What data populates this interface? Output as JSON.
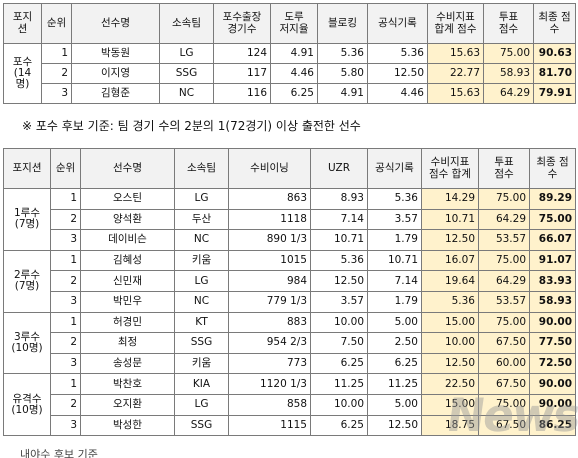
{
  "table1": {
    "headers": [
      "포지\n션",
      "순위",
      "선수명",
      "소속팀",
      "포수출장\n경기수",
      "도루\n저지율",
      "블로킹",
      "공식기록",
      "수비지표\n합계 점수",
      "투표\n점수",
      "최종 점수"
    ],
    "group_label": "포수\n(14명)",
    "rows": [
      [
        "1",
        "박동원",
        "LG",
        "124",
        "4.91",
        "5.36",
        "5.36",
        "15.63",
        "75.00",
        "90.63"
      ],
      [
        "2",
        "이지영",
        "SSG",
        "117",
        "4.46",
        "5.80",
        "12.50",
        "22.77",
        "58.93",
        "81.70"
      ],
      [
        "3",
        "김형준",
        "NC",
        "116",
        "6.25",
        "4.91",
        "4.46",
        "15.63",
        "64.29",
        "79.91"
      ]
    ]
  },
  "note": "※ 포수 후보 기준: 팀 경기 수의 2분의 1(72경기) 이상 출전한 선수",
  "table2": {
    "headers": [
      "포지션",
      "순위",
      "선수명",
      "소속팀",
      "수비이닝",
      "UZR",
      "공식기록",
      "수비지표\n점수 합계",
      "투표\n점수",
      "최종 점수"
    ],
    "groups": [
      {
        "label": "1루수\n(7명)",
        "rows": [
          [
            "1",
            "오스틴",
            "LG",
            "863",
            "8.93",
            "5.36",
            "14.29",
            "75.00",
            "89.29"
          ],
          [
            "2",
            "양석환",
            "두산",
            "1118",
            "7.14",
            "3.57",
            "10.71",
            "64.29",
            "75.00"
          ],
          [
            "3",
            "데이비슨",
            "NC",
            "890 1/3",
            "10.71",
            "1.79",
            "12.50",
            "53.57",
            "66.07"
          ]
        ]
      },
      {
        "label": "2루수\n(7명)",
        "rows": [
          [
            "1",
            "김혜성",
            "키움",
            "1015",
            "5.36",
            "10.71",
            "16.07",
            "75.00",
            "91.07"
          ],
          [
            "2",
            "신민재",
            "LG",
            "984",
            "12.50",
            "7.14",
            "19.64",
            "64.29",
            "83.93"
          ],
          [
            "3",
            "박민우",
            "NC",
            "779 1/3",
            "3.57",
            "1.79",
            "5.36",
            "53.57",
            "58.93"
          ]
        ]
      },
      {
        "label": "3루수\n(10명)",
        "rows": [
          [
            "1",
            "허경민",
            "KT",
            "883",
            "10.00",
            "5.00",
            "15.00",
            "75.00",
            "90.00"
          ],
          [
            "2",
            "최정",
            "SSG",
            "954 2/3",
            "7.50",
            "2.50",
            "10.00",
            "67.50",
            "77.50"
          ],
          [
            "3",
            "송성문",
            "키움",
            "773",
            "6.25",
            "6.25",
            "12.50",
            "60.00",
            "72.50"
          ]
        ]
      },
      {
        "label": "유격수\n(10명)",
        "rows": [
          [
            "1",
            "박찬호",
            "KIA",
            "1120 1/3",
            "11.25",
            "11.25",
            "22.50",
            "67.50",
            "90.00"
          ],
          [
            "2",
            "오지환",
            "LG",
            "858",
            "10.00",
            "5.00",
            "15.00",
            "75.00",
            "90.00"
          ],
          [
            "3",
            "박성한",
            "SSG",
            "1115",
            "6.25",
            "12.50",
            "18.75",
            "67.50",
            "86.25"
          ]
        ]
      }
    ]
  },
  "tail_text": "내야수 후보 기준",
  "watermark": "Newsia"
}
